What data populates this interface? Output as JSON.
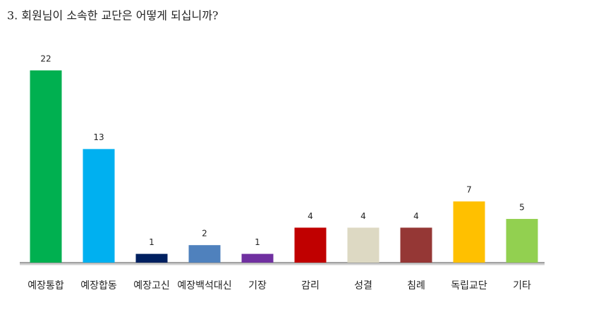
{
  "chart_data": {
    "type": "bar",
    "title": "3. 회원님이 소속한 교단은 어떻게 되십니까?",
    "categories": [
      "예장통합",
      "예장합동",
      "예장고신",
      "예장백석대신",
      "기장",
      "감리",
      "성결",
      "침례",
      "독립교단",
      "기타"
    ],
    "values": [
      22,
      13,
      1,
      2,
      1,
      4,
      4,
      4,
      7,
      5
    ],
    "colors": [
      "#00b050",
      "#00b0f0",
      "#002060",
      "#4f81bd",
      "#7030a0",
      "#c00000",
      "#ddd9c3",
      "#953735",
      "#ffc000",
      "#92d050"
    ]
  }
}
